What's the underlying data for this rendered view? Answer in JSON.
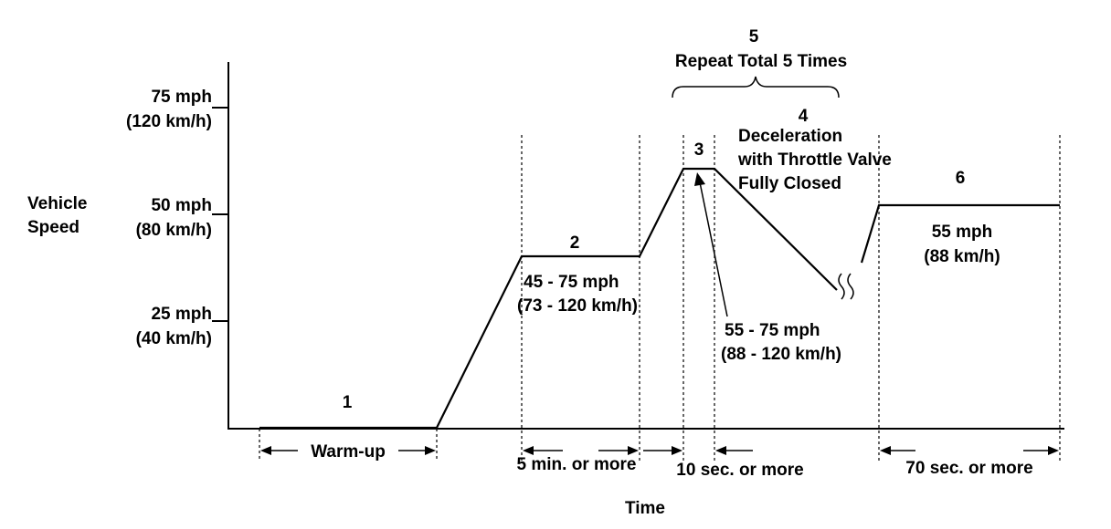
{
  "axes": {
    "y_title": [
      "Vehicle",
      "Speed"
    ],
    "x_title": "Time",
    "y_ticks": [
      {
        "mph": "75 mph",
        "kmh": "(120 km/h)"
      },
      {
        "mph": "50 mph",
        "kmh": "(80 km/h)"
      },
      {
        "mph": "25 mph",
        "kmh": "(40 km/h)"
      }
    ]
  },
  "phases": {
    "p1": {
      "num": "1",
      "duration": "Warm-up"
    },
    "p2": {
      "num": "2",
      "speed": [
        "45 - 75 mph",
        "(73 - 120 km/h)"
      ],
      "duration": "5 min. or more"
    },
    "p3": {
      "num": "3",
      "speed": [
        "55 - 75 mph",
        "(88 - 120 km/h)"
      ],
      "duration": "10 sec. or more"
    },
    "p4": {
      "num": "4",
      "desc": [
        "Deceleration",
        "with Throttle Valve",
        "Fully Closed"
      ]
    },
    "p5": {
      "num": "5",
      "desc": "Repeat Total 5 Times"
    },
    "p6": {
      "num": "6",
      "speed": [
        "55 mph",
        "(88 km/h)"
      ],
      "duration": "70 sec. or more"
    }
  }
}
